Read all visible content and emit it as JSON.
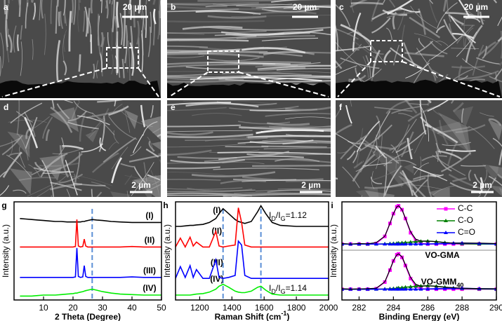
{
  "images": [
    {
      "letter": "a",
      "scale": "20 µm"
    },
    {
      "letter": "b",
      "scale": "20 µm"
    },
    {
      "letter": "c",
      "scale": "20 µm"
    },
    {
      "letter": "d",
      "scale": "2 µm"
    },
    {
      "letter": "e",
      "scale": "2 µm"
    },
    {
      "letter": "f",
      "scale": "2 µm"
    }
  ],
  "chart_data": [
    {
      "type": "line",
      "panel": "g",
      "y_label": "Intensity (a.u.)",
      "x_label": [
        "2 Theta (Degree)"
      ],
      "x": [
        2,
        4,
        6,
        8,
        10,
        12,
        14,
        16,
        18,
        20,
        20.8,
        21.3,
        21.8,
        22.5,
        23.3,
        23.8,
        24.3,
        25,
        26.5,
        28,
        30,
        33,
        36,
        40,
        44,
        48,
        50
      ],
      "xlim": [
        0,
        50
      ],
      "xticks": [
        10,
        20,
        30,
        40,
        50
      ],
      "ylim": [
        0,
        100
      ],
      "reference_lines": [
        26.5
      ],
      "label_side": "right",
      "series": [
        {
          "name": "(I)",
          "color": "#000000",
          "values": [
            83,
            82.5,
            82,
            81.5,
            81,
            80.5,
            80,
            80,
            79.5,
            79.5,
            79.5,
            79.5,
            79.5,
            79.5,
            80,
            80,
            80.5,
            81,
            82,
            81.5,
            81,
            80,
            79.5,
            79,
            79,
            79,
            79
          ]
        },
        {
          "name": "(II)",
          "color": "#ff0000",
          "values": [
            54,
            54,
            54,
            54,
            54,
            54,
            54,
            54,
            54,
            54,
            54.5,
            82,
            55,
            54,
            54.5,
            62,
            55,
            54,
            54,
            54,
            54,
            54,
            54,
            54.5,
            54,
            54,
            54
          ]
        },
        {
          "name": "(III)",
          "color": "#0000ff",
          "values": [
            23,
            23,
            23,
            23,
            23,
            23,
            23,
            23,
            23,
            23,
            23.5,
            53,
            24,
            23,
            23.5,
            35,
            24,
            23,
            23,
            23,
            23,
            23,
            23,
            23.5,
            23,
            23,
            23
          ]
        },
        {
          "name": "(IV)",
          "color": "#00ee00",
          "values": [
            4,
            4,
            4,
            4.5,
            5,
            5,
            5,
            5.5,
            6,
            6.5,
            7,
            7,
            7.5,
            8,
            8.5,
            9,
            9.5,
            10,
            11,
            10,
            8.5,
            7,
            6,
            5.5,
            5,
            5,
            5
          ]
        }
      ]
    },
    {
      "type": "line",
      "panel": "h",
      "y_label": "Intensity (a.u.)",
      "x_label": [
        "Raman Shift (cm",
        "-1",
        ")"
      ],
      "x": [
        1050,
        1080,
        1110,
        1140,
        1160,
        1180,
        1220,
        1260,
        1300,
        1320,
        1345,
        1380,
        1420,
        1440,
        1460,
        1480,
        1520,
        1560,
        1580,
        1610,
        1650,
        1700,
        1800,
        1900,
        2000
      ],
      "xlim": [
        1050,
        2000
      ],
      "xticks": [
        1200,
        1400,
        1600,
        1800,
        2000
      ],
      "ylim": [
        0,
        100
      ],
      "reference_lines": [
        1345,
        1580
      ],
      "label_side": "left",
      "annotations": [
        [
          "I",
          "D",
          "/I",
          "G",
          "=1.12"
        ],
        [
          "I",
          "D",
          "/I",
          "G",
          "=1.14"
        ]
      ],
      "series": [
        {
          "name": "(I)",
          "color": "#000000",
          "values": [
            75,
            75,
            75.5,
            76,
            76,
            76.5,
            77,
            79,
            83,
            88,
            93,
            88,
            82,
            80,
            79,
            78,
            80,
            90,
            96,
            88,
            79,
            76,
            75,
            75,
            75
          ]
        },
        {
          "name": "(II)",
          "color": "#ff0000",
          "values": [
            54,
            63,
            54,
            64,
            55,
            59,
            54,
            54,
            70,
            55,
            54,
            55,
            56,
            94,
            79,
            56,
            54,
            54,
            54,
            54,
            54,
            54,
            54,
            54,
            54
          ]
        },
        {
          "name": "(III)",
          "color": "#0000ff",
          "values": [
            22,
            34,
            23,
            35,
            23,
            31,
            22,
            22,
            41,
            23,
            22,
            23,
            25,
            60,
            56,
            25,
            22,
            22,
            22,
            22,
            22,
            22,
            22,
            22,
            22
          ]
        },
        {
          "name": "(IV)",
          "color": "#00ee00",
          "values": [
            5,
            5,
            5,
            5,
            5.5,
            6,
            6.5,
            8,
            11,
            14,
            16,
            13,
            9,
            8,
            7.5,
            7.5,
            9,
            13,
            14,
            10,
            6,
            5,
            5,
            5,
            5
          ]
        }
      ]
    },
    {
      "type": "spectrum",
      "panel": "i",
      "y_label": "Intensity (a.u.)",
      "x_label": [
        "Binding Energy (eV)"
      ],
      "x": [
        281,
        281.5,
        282,
        282.5,
        283,
        283.5,
        283.8,
        284,
        284.2,
        284.3,
        284.5,
        284.7,
        285,
        285.3,
        285.6,
        286,
        286.5,
        287,
        287.5,
        288,
        289,
        290
      ],
      "xlim": [
        281,
        290
      ],
      "xticks": [
        282,
        284,
        286,
        288,
        290
      ],
      "ylim": [
        0,
        100
      ],
      "legend": "upper right",
      "components": [
        {
          "name": "C-C",
          "color": "#ff00ff",
          "marker": "square"
        },
        {
          "name": "C-O",
          "color": "#008000",
          "marker": "triangle"
        },
        {
          "name": "C=O",
          "color": "#0000ff",
          "marker": "triangle"
        }
      ],
      "spectra": [
        {
          "label": [
            "VO-GMA"
          ],
          "data": [
            57.5,
            57,
            57.5,
            57.3,
            58.5,
            65,
            78,
            88,
            95,
            96,
            92,
            83.5,
            69.5,
            62,
            60,
            60,
            59.5,
            58.5,
            58,
            58,
            58,
            57.5
          ],
          "fits": [
            [
              57,
              57,
              57,
              57,
              57.6,
              64.8,
              78,
              88,
              95,
              96,
              92,
              83,
              68.5,
              60.3,
              57.6,
              57,
              57,
              57,
              57,
              57,
              57,
              57
            ],
            [
              57,
              57,
              57,
              57,
              57,
              57.2,
              57.4,
              57.6,
              57.8,
              58,
              58.3,
              58.6,
              59,
              59.5,
              59.8,
              60,
              59.5,
              58.5,
              57.8,
              57.3,
              57,
              57
            ],
            [
              57,
              57,
              57,
              57,
              57,
              57,
              57,
              57,
              57,
              57,
              57,
              57,
              57,
              57,
              57,
              57.1,
              57.3,
              57.6,
              57.9,
              58,
              57.6,
              57.1
            ]
          ]
        },
        {
          "label": [
            "VO-GMM",
            "40"
          ],
          "data": [
            11.5,
            11,
            11.3,
            11.5,
            12,
            18.5,
            31,
            40,
            46,
            47,
            44,
            36,
            23,
            16,
            14,
            14.5,
            14,
            13,
            12.5,
            12,
            11.5,
            11.5
          ],
          "fits": [
            [
              11,
              11,
              11,
              11,
              11.5,
              18.2,
              30.4,
              39.8,
              46.1,
              47,
              43.4,
              35.1,
              21.8,
              14.1,
              11.5,
              11,
              11,
              11,
              11,
              11,
              11,
              11
            ],
            [
              11,
              11,
              11,
              11,
              11,
              11.2,
              11.4,
              11.7,
              12,
              12.3,
              12.6,
              13,
              13.5,
              14,
              14.3,
              14.5,
              14,
              13,
              12.2,
              11.6,
              11.2,
              11
            ],
            [
              11,
              11,
              11,
              11,
              11,
              11,
              11,
              11,
              11,
              11,
              11,
              11,
              11,
              11,
              11,
              11.2,
              11.5,
              11.8,
              12,
              12,
              11.5,
              11.2
            ]
          ]
        }
      ]
    }
  ]
}
